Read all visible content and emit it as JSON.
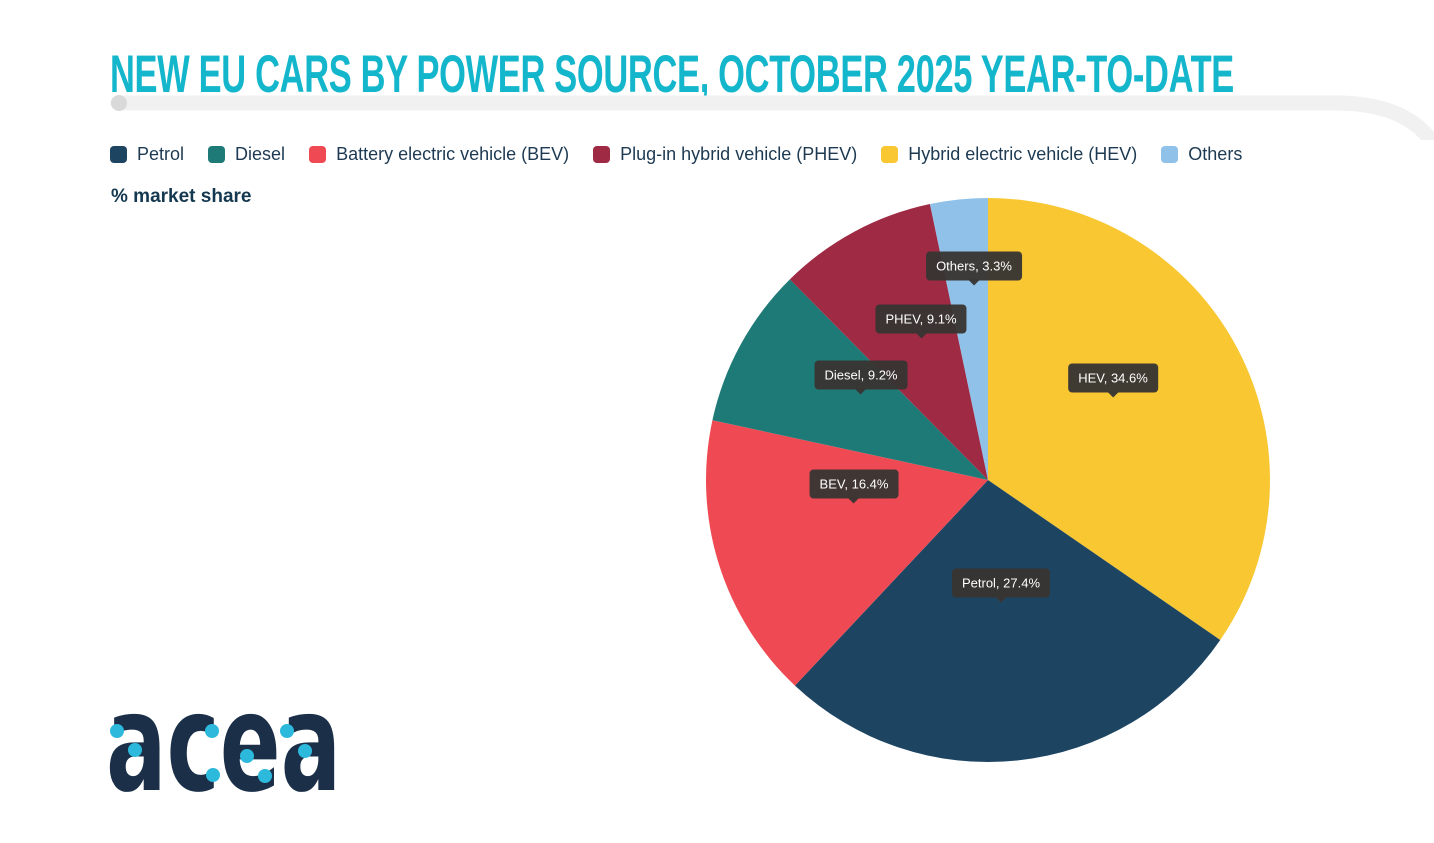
{
  "title": "NEW EU CARS BY POWER SOURCE, OCTOBER 2025 YEAR-TO-DATE",
  "subtitle": "% market share",
  "legend": {
    "items": [
      {
        "label": "Petrol",
        "color": "#1d4461"
      },
      {
        "label": "Diesel",
        "color": "#1e7a77"
      },
      {
        "label": "Battery electric vehicle (BEV)",
        "color": "#ef4a54"
      },
      {
        "label": "Plug-in hybrid vehicle (PHEV)",
        "color": "#9e2a44"
      },
      {
        "label": "Hybrid electric vehicle (HEV)",
        "color": "#f8c732"
      },
      {
        "label": "Others",
        "color": "#8fc1e9"
      }
    ]
  },
  "chart_data": {
    "type": "pie",
    "title": "NEW EU CARS BY POWER SOURCE, OCTOBER 2025 YEAR-TO-DATE",
    "units": "% market share",
    "start_angle_deg": 0,
    "direction": "clockwise",
    "slices": [
      {
        "name": "Hybrid electric vehicle (HEV)",
        "short": "HEV",
        "value": 34.6,
        "color": "#f8c732",
        "label": "HEV, 34.6%"
      },
      {
        "name": "Petrol",
        "short": "Petrol",
        "value": 27.4,
        "color": "#1d4461",
        "label": "Petrol, 27.4%"
      },
      {
        "name": "Battery electric vehicle (BEV)",
        "short": "BEV",
        "value": 16.4,
        "color": "#ef4a54",
        "label": "BEV, 16.4%"
      },
      {
        "name": "Diesel",
        "short": "Diesel",
        "value": 9.2,
        "color": "#1e7a77",
        "label": "Diesel, 9.2%"
      },
      {
        "name": "Plug-in hybrid vehicle (PHEV)",
        "short": "PHEV",
        "value": 9.1,
        "color": "#9e2a44",
        "label": "PHEV, 9.1%"
      },
      {
        "name": "Others",
        "short": "Others",
        "value": 3.3,
        "color": "#8fc1e9",
        "label": "Others, 3.3%"
      }
    ]
  },
  "logo": {
    "text": "acea",
    "accent_color": "#2cb9dc",
    "text_color": "#1b3048"
  },
  "colors": {
    "title": "#14b6cc",
    "tooltip_bg": "#383532",
    "swoosh": "#f1f1f1",
    "knob": "#d9d9d9"
  }
}
